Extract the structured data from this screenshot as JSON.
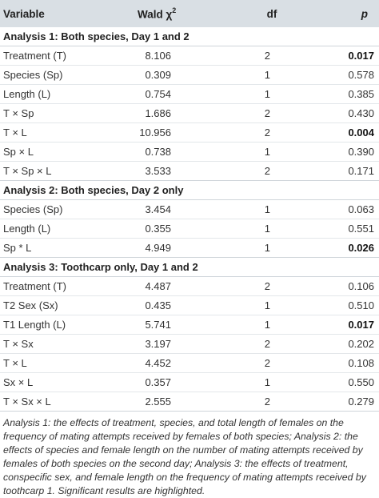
{
  "header": {
    "variable": "Variable",
    "wald": "Wald χ",
    "wald_sup": "2",
    "df": "df",
    "p": "p"
  },
  "sections": [
    {
      "title": "Analysis 1: Both species, Day 1 and 2",
      "rows": [
        {
          "variable": "Treatment (T)",
          "wald": "8.106",
          "df": "2",
          "p": "0.017",
          "significant": true
        },
        {
          "variable": "Species (Sp)",
          "wald": "0.309",
          "df": "1",
          "p": "0.578",
          "significant": false
        },
        {
          "variable": "Length (L)",
          "wald": "0.754",
          "df": "1",
          "p": "0.385",
          "significant": false
        },
        {
          "variable": "T × Sp",
          "wald": "1.686",
          "df": "2",
          "p": "0.430",
          "significant": false
        },
        {
          "variable": "T × L",
          "wald": "10.956",
          "df": "2",
          "p": "0.004",
          "significant": true
        },
        {
          "variable": "Sp × L",
          "wald": "0.738",
          "df": "1",
          "p": "0.390",
          "significant": false
        },
        {
          "variable": "T × Sp × L",
          "wald": "3.533",
          "df": "2",
          "p": "0.171",
          "significant": false
        }
      ]
    },
    {
      "title": "Analysis 2: Both species, Day 2 only",
      "rows": [
        {
          "variable": "Species (Sp)",
          "wald": "3.454",
          "df": "1",
          "p": "0.063",
          "significant": false
        },
        {
          "variable": "Length (L)",
          "wald": "0.355",
          "df": "1",
          "p": "0.551",
          "significant": false
        },
        {
          "variable": "Sp * L",
          "wald": "4.949",
          "df": "1",
          "p": "0.026",
          "significant": true
        }
      ]
    },
    {
      "title": "Analysis 3: Toothcarp only, Day 1 and 2",
      "rows": [
        {
          "variable": "Treatment (T)",
          "wald": "4.487",
          "df": "2",
          "p": "0.106",
          "significant": false
        },
        {
          "variable": "T2 Sex (Sx)",
          "wald": "0.435",
          "df": "1",
          "p": "0.510",
          "significant": false
        },
        {
          "variable": "T1 Length (L)",
          "wald": "5.741",
          "df": "1",
          "p": "0.017",
          "significant": true
        },
        {
          "variable": "T × Sx",
          "wald": "3.197",
          "df": "2",
          "p": "0.202",
          "significant": false
        },
        {
          "variable": "T × L",
          "wald": "4.452",
          "df": "2",
          "p": "0.108",
          "significant": false
        },
        {
          "variable": "Sx × L",
          "wald": "0.357",
          "df": "1",
          "p": "0.550",
          "significant": false
        },
        {
          "variable": "T × Sx × L",
          "wald": "2.555",
          "df": "2",
          "p": "0.279",
          "significant": false
        }
      ]
    }
  ],
  "footnote": "Analysis 1: the effects of treatment, species, and total length of females on the frequency of mating attempts received by females of both species; Analysis 2: the effects of species and female length on the number of mating attempts received by females of both species on the second day; Analysis 3: the effects of treatment, conspecific sex, and female length on the frequency of mating attempts received by toothcarp 1. Significant results are highlighted.",
  "colors": {
    "header_bg": "#d9dfe4",
    "text": "#333333"
  }
}
